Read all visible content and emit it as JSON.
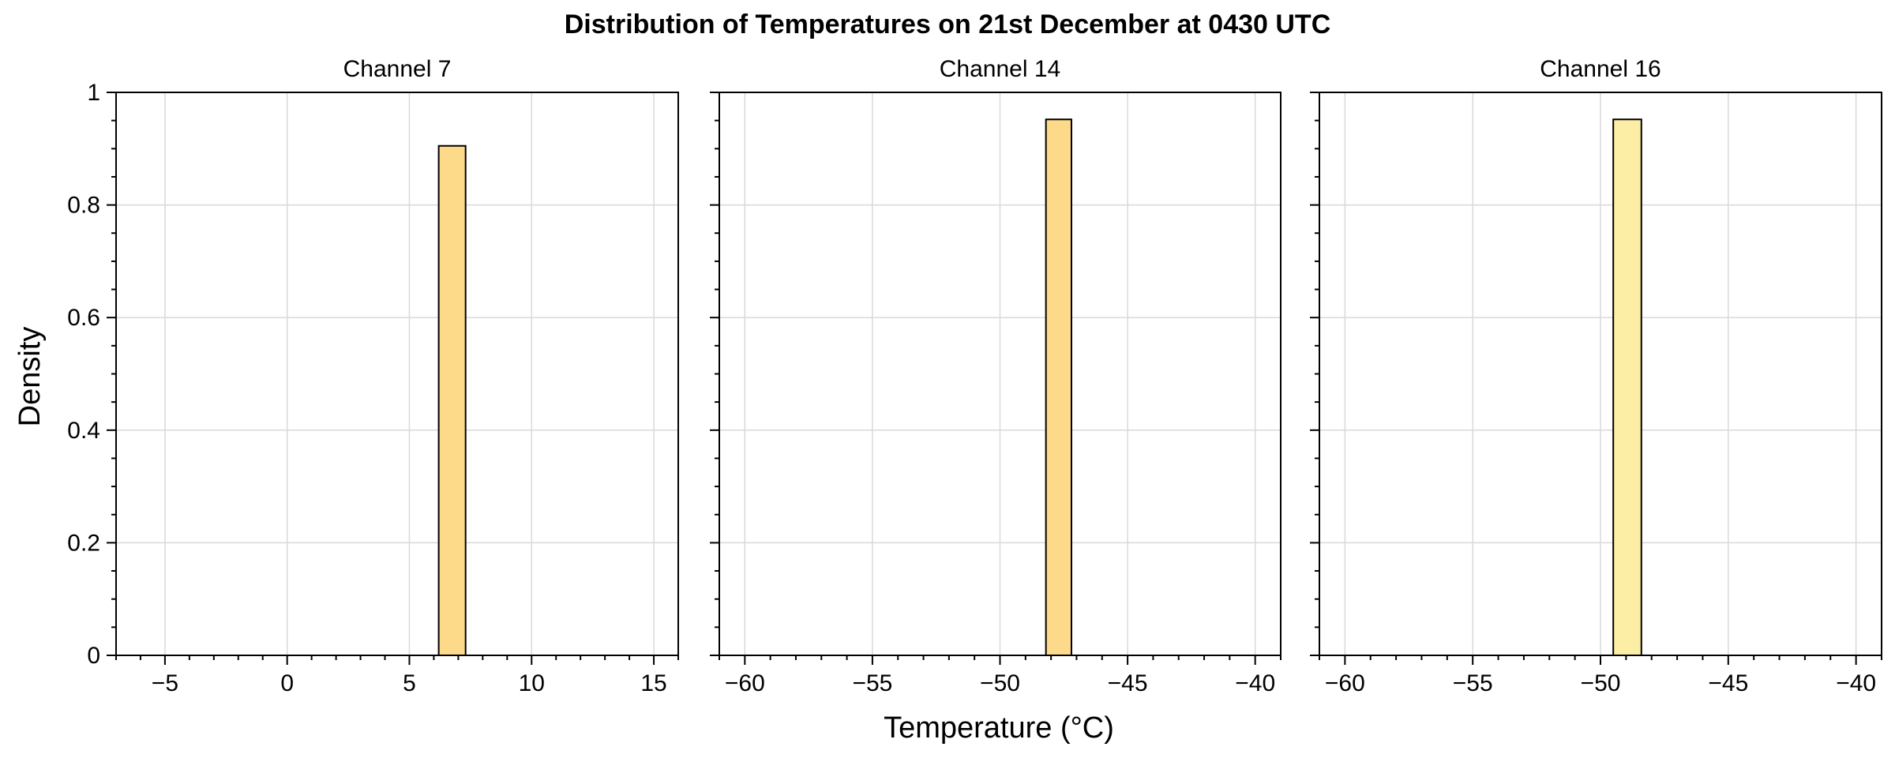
{
  "figure": {
    "title": "Distribution of Temperatures on 21st December at 0430 UTC",
    "xlabel": "Temperature (°C)",
    "ylabel": "Density",
    "bar_fill": "#fdd98a",
    "bar_fill_alt": "#fdeea6",
    "bar_edge": "#000000",
    "grid_color": "#d9d9d9"
  },
  "chart_data": [
    {
      "type": "bar",
      "title": "Channel 7",
      "xlim": [
        -7,
        16
      ],
      "ylim": [
        0,
        1
      ],
      "xticks": [
        -5,
        0,
        5,
        10,
        15
      ],
      "yticks": [
        0,
        0.2,
        0.4,
        0.6,
        0.8,
        1
      ],
      "ytick_labels": [
        "0",
        "0.2",
        "0.4",
        "0.6",
        "0.8",
        "1"
      ],
      "grid": true,
      "bars": [
        {
          "x0": 6.2,
          "x1": 7.3,
          "density": 0.905
        }
      ]
    },
    {
      "type": "bar",
      "title": "Channel 14",
      "xlim": [
        -61,
        -39
      ],
      "ylim": [
        0,
        1
      ],
      "xticks": [
        -60,
        -55,
        -50,
        -45,
        -40
      ],
      "grid": true,
      "bars": [
        {
          "x0": -48.2,
          "x1": -47.2,
          "density": 0.952
        }
      ]
    },
    {
      "type": "bar",
      "title": "Channel 16",
      "xlim": [
        -61,
        -39
      ],
      "ylim": [
        0,
        1
      ],
      "xticks": [
        -60,
        -55,
        -50,
        -45,
        -40
      ],
      "grid": true,
      "bars": [
        {
          "x0": -49.5,
          "x1": -48.4,
          "density": 0.952
        }
      ]
    }
  ]
}
